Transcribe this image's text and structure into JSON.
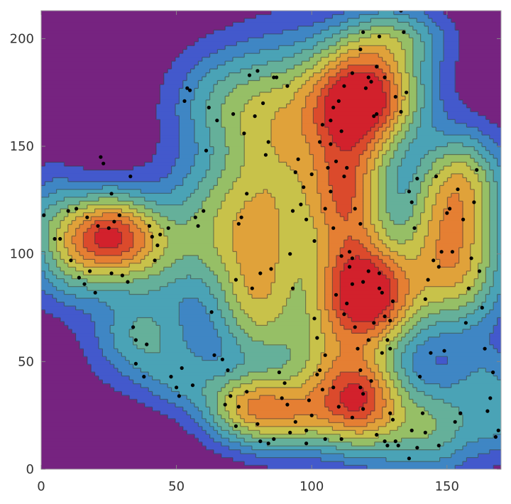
{
  "chart_data": {
    "type": "contour",
    "title": "",
    "xlabel": "",
    "ylabel": "",
    "xlim": [
      0,
      170
    ],
    "ylim": [
      0,
      213
    ],
    "x_ticks": [
      0,
      50,
      100,
      150
    ],
    "y_ticks": [
      0,
      50,
      100,
      150,
      200
    ],
    "x_tick_labels": [
      "0",
      "50",
      "100",
      "150"
    ],
    "y_tick_labels": [
      "0",
      "50",
      "100",
      "150",
      "200"
    ],
    "levels": 10,
    "colors": [
      "#762380",
      "#4359cc",
      "#3f86c4",
      "#4aa3b6",
      "#65b09a",
      "#96bf66",
      "#c8c24a",
      "#e0a23a",
      "#e57f33",
      "#db4a2c",
      "#d2212c"
    ],
    "density_peaks": [
      {
        "x": 119,
        "y": 172,
        "level": 10
      },
      {
        "x": 120,
        "y": 80,
        "level": 10
      },
      {
        "x": 25,
        "y": 109,
        "level": 8
      },
      {
        "x": 64,
        "y": 71,
        "level": 2
      }
    ],
    "point_color": "#000000",
    "points": [
      [
        1,
        118
      ],
      [
        5,
        107
      ],
      [
        7,
        107
      ],
      [
        10,
        120
      ],
      [
        11,
        97
      ],
      [
        13,
        121
      ],
      [
        14,
        89
      ],
      [
        16,
        86
      ],
      [
        17,
        117
      ],
      [
        18,
        92
      ],
      [
        20,
        82
      ],
      [
        21,
        113
      ],
      [
        22,
        145
      ],
      [
        23,
        142
      ],
      [
        26,
        128
      ],
      [
        27,
        115
      ],
      [
        29,
        118
      ],
      [
        25,
        112
      ],
      [
        26,
        91
      ],
      [
        30,
        90
      ],
      [
        32,
        87
      ],
      [
        33,
        136
      ],
      [
        34,
        66
      ],
      [
        35,
        60
      ],
      [
        35,
        49
      ],
      [
        38,
        43
      ],
      [
        39,
        58
      ],
      [
        40,
        113
      ],
      [
        41,
        108
      ],
      [
        42,
        97
      ],
      [
        43,
        104
      ],
      [
        44,
        109
      ],
      [
        47,
        112
      ],
      [
        48,
        43
      ],
      [
        50,
        38
      ],
      [
        51,
        34
      ],
      [
        52,
        47
      ],
      [
        53,
        171
      ],
      [
        54,
        177
      ],
      [
        55,
        176
      ],
      [
        56,
        39
      ],
      [
        57,
        117
      ],
      [
        58,
        113
      ],
      [
        60,
        120
      ],
      [
        61,
        148
      ],
      [
        62,
        168
      ],
      [
        63,
        73
      ],
      [
        64,
        53
      ],
      [
        65,
        162
      ],
      [
        67,
        51
      ],
      [
        68,
        30
      ],
      [
        69,
        46
      ],
      [
        70,
        34
      ],
      [
        71,
        165
      ],
      [
        72,
        88
      ],
      [
        73,
        114
      ],
      [
        74,
        117
      ],
      [
        75,
        156
      ],
      [
        76,
        128
      ],
      [
        77,
        183
      ],
      [
        78,
        84
      ],
      [
        79,
        164
      ],
      [
        80,
        185
      ],
      [
        81,
        91
      ],
      [
        82,
        170
      ],
      [
        83,
        146
      ],
      [
        84,
        152
      ],
      [
        85,
        93
      ],
      [
        86,
        182
      ],
      [
        87,
        182
      ],
      [
        88,
        45
      ],
      [
        89,
        33
      ],
      [
        90,
        40
      ],
      [
        91,
        178
      ],
      [
        92,
        100
      ],
      [
        93,
        84
      ],
      [
        94,
        138
      ],
      [
        95,
        144
      ],
      [
        96,
        123
      ],
      [
        97,
        131
      ],
      [
        98,
        18
      ],
      [
        99,
        32
      ],
      [
        100,
        25
      ],
      [
        101,
        70
      ],
      [
        102,
        61
      ],
      [
        103,
        46
      ],
      [
        104,
        37
      ],
      [
        105,
        53
      ],
      [
        106,
        140
      ],
      [
        107,
        129
      ],
      [
        108,
        112
      ],
      [
        109,
        81
      ],
      [
        110,
        29
      ],
      [
        111,
        99
      ],
      [
        112,
        72
      ],
      [
        113,
        140
      ],
      [
        114,
        101
      ],
      [
        115,
        98
      ],
      [
        116,
        66
      ],
      [
        117,
        56
      ],
      [
        118,
        38
      ],
      [
        119,
        35
      ],
      [
        120,
        177
      ],
      [
        121,
        182
      ],
      [
        122,
        180
      ],
      [
        123,
        164
      ],
      [
        124,
        165
      ],
      [
        125,
        84
      ],
      [
        126,
        54
      ],
      [
        127,
        71
      ],
      [
        128,
        60
      ],
      [
        129,
        56
      ],
      [
        130,
        23
      ],
      [
        131,
        13
      ],
      [
        132,
        11
      ],
      [
        133,
        213
      ],
      [
        134,
        203
      ],
      [
        135,
        175
      ],
      [
        136,
        129
      ],
      [
        137,
        124
      ],
      [
        138,
        112
      ],
      [
        139,
        135
      ],
      [
        140,
        43
      ],
      [
        141,
        26
      ],
      [
        142,
        79
      ],
      [
        143,
        88
      ],
      [
        144,
        54
      ],
      [
        145,
        97
      ],
      [
        146,
        136
      ],
      [
        147,
        94
      ],
      [
        148,
        101
      ],
      [
        149,
        55
      ],
      [
        150,
        119
      ],
      [
        151,
        121
      ],
      [
        152,
        101
      ],
      [
        153,
        22
      ],
      [
        154,
        130
      ],
      [
        155,
        26
      ],
      [
        156,
        116
      ],
      [
        157,
        68
      ],
      [
        158,
        84
      ],
      [
        159,
        98
      ],
      [
        160,
        124
      ],
      [
        161,
        139
      ],
      [
        162,
        92
      ],
      [
        163,
        75
      ],
      [
        164,
        56
      ],
      [
        165,
        27
      ],
      [
        166,
        33
      ],
      [
        167,
        45
      ],
      [
        168,
        15
      ],
      [
        169,
        18
      ],
      [
        115,
        184
      ],
      [
        112,
        178
      ],
      [
        110,
        171
      ],
      [
        108,
        168
      ],
      [
        107,
        162
      ],
      [
        111,
        157
      ],
      [
        124,
        187
      ],
      [
        127,
        182
      ],
      [
        118,
        195
      ],
      [
        125,
        201
      ],
      [
        119,
        203
      ],
      [
        131,
        173
      ],
      [
        133,
        166
      ],
      [
        114,
        94
      ],
      [
        115,
        86
      ],
      [
        113,
        77
      ],
      [
        119,
        87
      ],
      [
        126,
        82
      ],
      [
        121,
        92
      ],
      [
        125,
        91
      ],
      [
        130,
        78
      ],
      [
        129,
        69
      ],
      [
        123,
        68
      ],
      [
        121,
        60
      ],
      [
        118,
        46
      ],
      [
        122,
        41
      ],
      [
        119,
        28
      ],
      [
        115,
        24
      ],
      [
        111,
        14
      ],
      [
        124,
        16
      ],
      [
        127,
        13
      ],
      [
        128,
        11
      ],
      [
        129,
        26
      ],
      [
        137,
        18
      ],
      [
        139,
        10
      ],
      [
        136,
        5
      ],
      [
        142,
        17
      ],
      [
        147,
        11
      ],
      [
        91,
        30
      ],
      [
        76,
        36
      ],
      [
        80,
        21
      ],
      [
        72,
        20
      ],
      [
        73,
        29
      ],
      [
        81,
        13
      ],
      [
        84,
        12
      ],
      [
        86,
        14
      ],
      [
        92,
        17
      ],
      [
        94,
        22
      ],
      [
        98,
        12
      ],
      [
        105,
        14
      ],
      [
        108,
        38
      ],
      [
        102,
        44
      ],
      [
        101,
        106
      ],
      [
        98,
        116
      ],
      [
        100,
        137
      ],
      [
        103,
        152
      ],
      [
        104,
        160
      ],
      [
        107,
        151
      ],
      [
        109,
        143
      ],
      [
        112,
        136
      ],
      [
        116,
        121
      ],
      [
        118,
        114
      ],
      [
        105,
        121
      ],
      [
        93,
        120
      ]
    ]
  }
}
